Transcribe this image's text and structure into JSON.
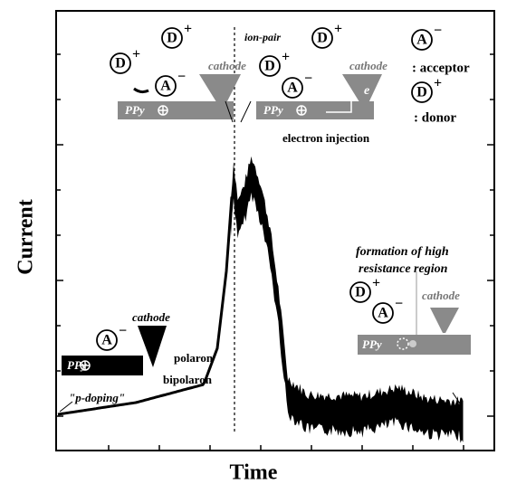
{
  "axes": {
    "x_label": "Time",
    "y_label": "Current"
  },
  "annotations": {
    "ion_pair": "ion-pair",
    "electron_injection": "electron injection",
    "acceptor": ": acceptor",
    "donor": ": donor",
    "polaron": "polaron",
    "bipolaron": "bipolaron",
    "p_doping": "\"p-doping\"",
    "formation": "formation of high",
    "resistance": "resistance region",
    "cathode": "cathode",
    "ppy": "PPy",
    "electron": "e",
    "acceptor_symbol": "A",
    "donor_symbol": "D",
    "minus": "−",
    "plus": "+"
  }
}
